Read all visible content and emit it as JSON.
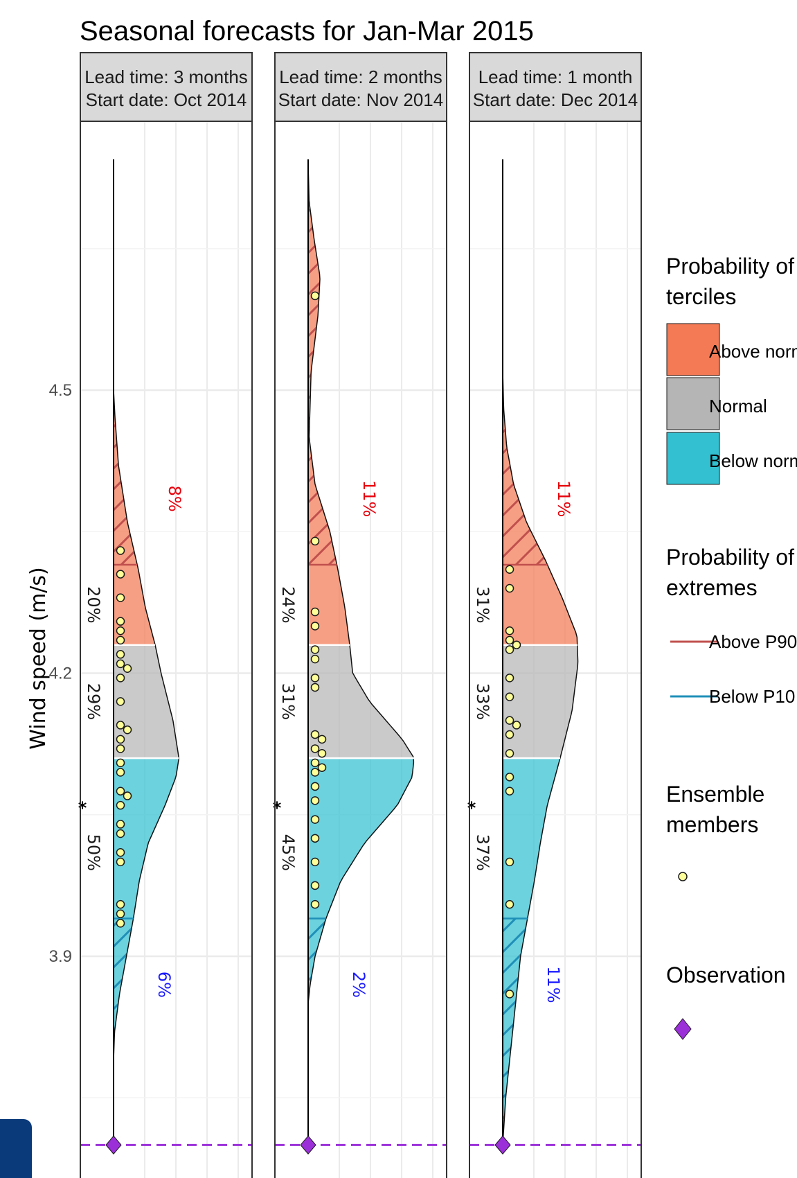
{
  "chart_data": {
    "type": "area",
    "title": "Seasonal forecasts for Jan-Mar 2015",
    "ylabel": "Wind speed (m/s)",
    "xlabel": "",
    "ylim": [
      3.665,
      4.785
    ],
    "y_ticks": [
      3.9,
      4.2,
      4.5
    ],
    "y_tick_labels": [
      "3.9",
      "4.2",
      "4.5"
    ],
    "grid": true,
    "legend_position": "right",
    "tercile_limits": {
      "lower": 4.11,
      "upper": 4.23
    },
    "extreme_limits": {
      "p10": 3.94,
      "p90": 4.315
    },
    "observation": 3.7,
    "colors": {
      "above_normal": "#f47a55",
      "normal": "#b5b5b5",
      "below_normal": "#33c1d1",
      "above_p90": "#c0504d",
      "below_p10": "#1f8fb8",
      "ensemble_fill": "#ffff99",
      "observation": "#9b30d9",
      "pct_above_p90": "#e8000b",
      "pct_below_p10": "#1a1aff"
    },
    "panels": [
      {
        "strip_line1": "Lead time: 3 months",
        "strip_line2": "Start date: Oct 2014",
        "prob_above": "20%",
        "prob_normal": "29%",
        "prob_below": "50%",
        "prob_above_p90": "8%",
        "prob_below_p10": "6%",
        "star": "*",
        "star_tercile": "below",
        "density_points": [
          [
            3.79,
            0
          ],
          [
            3.82,
            0.01
          ],
          [
            3.86,
            0.06
          ],
          [
            3.9,
            0.13
          ],
          [
            3.94,
            0.2
          ],
          [
            3.98,
            0.26
          ],
          [
            4.02,
            0.35
          ],
          [
            4.06,
            0.52
          ],
          [
            4.09,
            0.63
          ],
          [
            4.11,
            0.66
          ],
          [
            4.15,
            0.6
          ],
          [
            4.2,
            0.48
          ],
          [
            4.23,
            0.42
          ],
          [
            4.27,
            0.32
          ],
          [
            4.31,
            0.25
          ],
          [
            4.36,
            0.14
          ],
          [
            4.42,
            0.05
          ],
          [
            4.47,
            0.015
          ],
          [
            4.5,
            0
          ]
        ],
        "members": [
          4.33,
          4.305,
          4.28,
          4.255,
          4.245,
          4.235,
          4.22,
          4.21,
          4.205,
          4.195,
          4.17,
          4.145,
          4.14,
          4.13,
          4.12,
          4.105,
          4.095,
          4.075,
          4.07,
          4.06,
          4.04,
          4.03,
          4.01,
          4.0,
          3.955,
          3.945,
          3.935
        ]
      },
      {
        "strip_line1": "Lead time: 2 months",
        "strip_line2": "Start date: Nov 2014",
        "prob_above": "24%",
        "prob_normal": "31%",
        "prob_below": "45%",
        "prob_above_p90": "11%",
        "prob_below_p10": "2%",
        "star": "*",
        "star_tercile": "below",
        "density_points": [
          [
            3.85,
            0
          ],
          [
            3.87,
            0.02
          ],
          [
            3.9,
            0.07
          ],
          [
            3.94,
            0.18
          ],
          [
            3.98,
            0.33
          ],
          [
            4.02,
            0.57
          ],
          [
            4.06,
            0.9
          ],
          [
            4.09,
            1.05
          ],
          [
            4.11,
            1.07
          ],
          [
            4.13,
            0.95
          ],
          [
            4.17,
            0.62
          ],
          [
            4.2,
            0.45
          ],
          [
            4.23,
            0.42
          ],
          [
            4.27,
            0.37
          ],
          [
            4.31,
            0.3
          ],
          [
            4.35,
            0.22
          ],
          [
            4.4,
            0.07
          ],
          [
            4.45,
            0.01
          ],
          [
            4.52,
            0.03
          ],
          [
            4.58,
            0.1
          ],
          [
            4.62,
            0.12
          ],
          [
            4.66,
            0.06
          ],
          [
            4.7,
            0.01
          ],
          [
            4.74,
            0
          ]
        ],
        "members": [
          4.6,
          4.34,
          4.265,
          4.25,
          4.225,
          4.215,
          4.195,
          4.185,
          4.135,
          4.13,
          4.12,
          4.115,
          4.105,
          4.1,
          4.095,
          4.08,
          4.065,
          4.045,
          4.025,
          4.0,
          3.975,
          3.955
        ]
      },
      {
        "strip_line1": "Lead time: 1 month",
        "strip_line2": "Start date: Dec 2014",
        "prob_above": "31%",
        "prob_normal": "33%",
        "prob_below": "37%",
        "prob_above_p90": "11%",
        "prob_below_p10": "11%",
        "star": "*",
        "star_tercile": "below",
        "density_points": [
          [
            3.7,
            0
          ],
          [
            3.75,
            0.03
          ],
          [
            3.8,
            0.08
          ],
          [
            3.85,
            0.13
          ],
          [
            3.9,
            0.18
          ],
          [
            3.94,
            0.25
          ],
          [
            3.98,
            0.32
          ],
          [
            4.02,
            0.38
          ],
          [
            4.06,
            0.45
          ],
          [
            4.11,
            0.58
          ],
          [
            4.16,
            0.7
          ],
          [
            4.21,
            0.76
          ],
          [
            4.24,
            0.75
          ],
          [
            4.28,
            0.6
          ],
          [
            4.32,
            0.43
          ],
          [
            4.36,
            0.24
          ],
          [
            4.4,
            0.11
          ],
          [
            4.44,
            0.04
          ],
          [
            4.48,
            0.01
          ],
          [
            4.52,
            0
          ]
        ],
        "members": [
          4.31,
          4.29,
          4.245,
          4.235,
          4.23,
          4.225,
          4.195,
          4.175,
          4.15,
          4.145,
          4.135,
          4.115,
          4.09,
          4.075,
          4.0,
          3.955,
          3.86
        ]
      }
    ],
    "legend": {
      "terciles_title": "Probability of terciles",
      "terciles": [
        "Above normal",
        "Normal",
        "Below normal"
      ],
      "extremes_title": "Probability of extremes",
      "extremes": [
        "Above P90",
        "Below P10"
      ],
      "ensemble_title": "Ensemble members",
      "observation_title": "Observation"
    }
  }
}
